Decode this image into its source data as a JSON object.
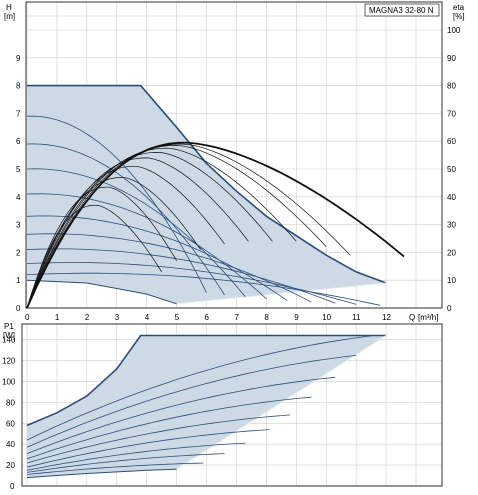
{
  "chart_data": [
    {
      "type": "line",
      "title": "MAGNA3 32-80 N",
      "ylabel": "H",
      "yunit": "[m]",
      "y2label": "eta",
      "y2unit": "[%]",
      "xlabel": "Q",
      "xunit": "[m³/h]",
      "xlim": [
        0,
        14
      ],
      "ylim": [
        0,
        10
      ],
      "y2lim": [
        0,
        100
      ],
      "grid": true,
      "x_ticks": [
        0,
        1,
        2,
        3,
        4,
        5,
        6,
        7,
        8,
        9,
        10,
        11,
        12
      ],
      "y_ticks": [
        0,
        1,
        2,
        3,
        4,
        5,
        6,
        7,
        8,
        9
      ],
      "y2_ticks": [
        0,
        10,
        20,
        30,
        40,
        50,
        60,
        70,
        80,
        90,
        100
      ],
      "operating_range": {
        "max_curve": [
          [
            0,
            8.0
          ],
          [
            3.8,
            8.0
          ],
          [
            5,
            6.5
          ],
          [
            6,
            5.2
          ],
          [
            7,
            4.2
          ],
          [
            8,
            3.3
          ],
          [
            9,
            2.6
          ],
          [
            10,
            1.9
          ],
          [
            11,
            1.3
          ],
          [
            12,
            0.9
          ]
        ],
        "min_curve": [
          [
            0,
            1.0
          ],
          [
            2,
            0.9
          ],
          [
            3,
            0.7
          ],
          [
            4,
            0.5
          ],
          [
            5,
            0.15
          ]
        ],
        "outer_points": [
          [
            5,
            0.15
          ],
          [
            12,
            0.9
          ]
        ]
      },
      "head_curves": [
        {
          "h0": 6.9,
          "qmax": 6.0
        },
        {
          "h0": 5.9,
          "qmax": 6.6
        },
        {
          "h0": 5.0,
          "qmax": 7.3
        },
        {
          "h0": 4.1,
          "qmax": 8.0
        },
        {
          "h0": 3.3,
          "qmax": 8.7
        },
        {
          "h0": 2.65,
          "qmax": 9.5
        },
        {
          "h0": 2.1,
          "qmax": 10.3
        },
        {
          "h0": 1.6,
          "qmax": 11.0
        },
        {
          "h0": 1.2,
          "qmax": 11.8
        }
      ],
      "efficiency_curves": [
        {
          "peak_q": 5.3,
          "peak_eta": 59.5,
          "end_q": 12.6,
          "end_eta": 18.5,
          "bold": true
        },
        {
          "peak_q": 5.2,
          "peak_eta": 59,
          "end_q": 10.8,
          "end_eta": 19,
          "bold": false
        },
        {
          "peak_q": 5.0,
          "peak_eta": 58.5,
          "end_q": 10.0,
          "end_eta": 22,
          "bold": false
        },
        {
          "peak_q": 4.7,
          "peak_eta": 57.5,
          "end_q": 9.0,
          "end_eta": 24,
          "bold": false
        },
        {
          "peak_q": 4.4,
          "peak_eta": 56,
          "end_q": 8.2,
          "end_eta": 24,
          "bold": false
        },
        {
          "peak_q": 4.0,
          "peak_eta": 54,
          "end_q": 7.4,
          "end_eta": 24,
          "bold": false
        },
        {
          "peak_q": 3.6,
          "peak_eta": 51,
          "end_q": 6.6,
          "end_eta": 23,
          "bold": false
        },
        {
          "peak_q": 3.2,
          "peak_eta": 47,
          "end_q": 5.8,
          "end_eta": 21,
          "bold": false
        },
        {
          "peak_q": 2.7,
          "peak_eta": 43.5,
          "end_q": 5.0,
          "end_eta": 17,
          "bold": false
        },
        {
          "peak_q": 2.3,
          "peak_eta": 37,
          "end_q": 4.5,
          "end_eta": 13,
          "bold": false
        }
      ]
    },
    {
      "type": "line",
      "ylabel": "P1",
      "yunit": "[W]",
      "xlim": [
        0,
        14
      ],
      "ylim": [
        0,
        155
      ],
      "grid": true,
      "y_ticks": [
        0,
        20,
        40,
        60,
        80,
        100,
        120,
        140
      ],
      "operating_range": {
        "upper_boundary": [
          [
            0,
            58
          ],
          [
            1,
            70
          ],
          [
            2,
            86
          ],
          [
            3,
            112
          ],
          [
            3.8,
            144
          ],
          [
            12,
            144
          ]
        ],
        "lower_boundary": [
          [
            0,
            8
          ],
          [
            1,
            10
          ],
          [
            2,
            12
          ],
          [
            3,
            13.5
          ],
          [
            4,
            15
          ],
          [
            5,
            16
          ]
        ],
        "outer_points": [
          [
            5,
            16
          ],
          [
            12,
            144
          ]
        ]
      },
      "power_curves": [
        {
          "p0": 44,
          "p_end": 144,
          "q_end": 11.6
        },
        {
          "p0": 37,
          "p_end": 125,
          "q_end": 11.0
        },
        {
          "p0": 31,
          "p_end": 104,
          "q_end": 10.3
        },
        {
          "p0": 26,
          "p_end": 85,
          "q_end": 9.5
        },
        {
          "p0": 22,
          "p_end": 68,
          "q_end": 8.8
        },
        {
          "p0": 18,
          "p_end": 54,
          "q_end": 8.1
        },
        {
          "p0": 15,
          "p_end": 41,
          "q_end": 7.3
        },
        {
          "p0": 13,
          "p_end": 31,
          "q_end": 6.6
        },
        {
          "p0": 11,
          "p_end": 22,
          "q_end": 5.9
        }
      ]
    }
  ]
}
